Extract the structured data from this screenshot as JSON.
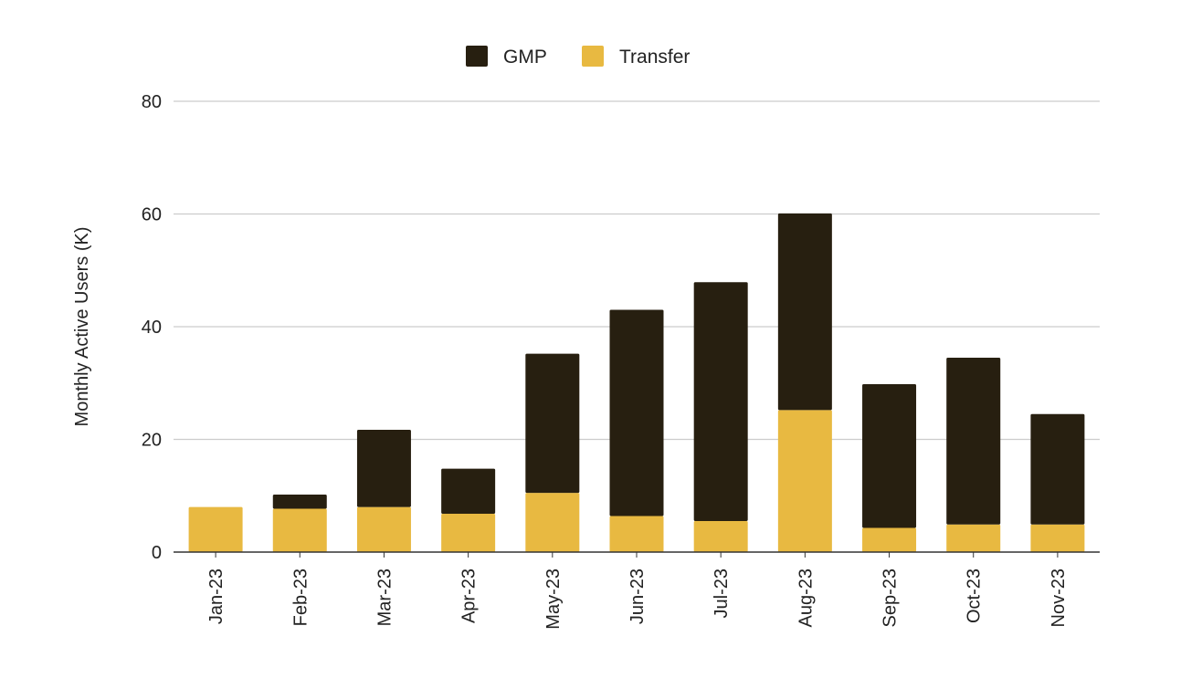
{
  "chart_data": {
    "type": "bar",
    "stacked": true,
    "categories": [
      "Jan-23",
      "Feb-23",
      "Mar-23",
      "Apr-23",
      "May-23",
      "Jun-23",
      "Jul-23",
      "Aug-23",
      "Sep-23",
      "Oct-23",
      "Nov-23"
    ],
    "series": [
      {
        "name": "Transfer",
        "color": "#E8B941",
        "values": [
          8.0,
          7.7,
          8.0,
          6.8,
          10.5,
          6.4,
          5.5,
          25.2,
          4.3,
          4.9,
          4.9
        ]
      },
      {
        "name": "GMP",
        "color": "#271F10",
        "values": [
          0.0,
          2.5,
          13.7,
          8.0,
          24.7,
          36.6,
          42.4,
          34.9,
          25.5,
          29.6,
          19.6
        ]
      }
    ],
    "legend": {
      "position": "top",
      "order": [
        "GMP",
        "Transfer"
      ]
    },
    "title": "",
    "xlabel": "",
    "ylabel": "Monthly Active Users (K)",
    "ylim": [
      0,
      80
    ],
    "yticks": [
      0,
      20,
      40,
      60,
      80
    ],
    "grid": true,
    "gridColor": "#cccccc",
    "axisColor": "#333333"
  }
}
